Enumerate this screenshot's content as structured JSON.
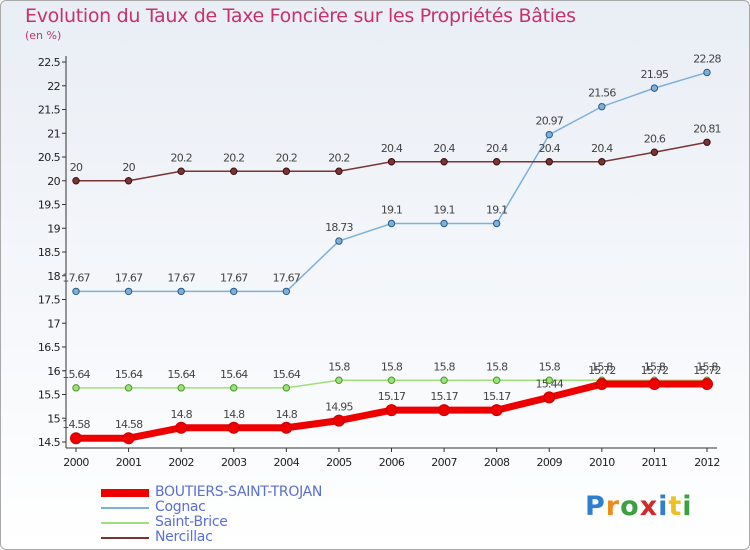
{
  "header": {
    "title": "Evolution du Taux de Taxe Foncière sur les Propriétés Bâties",
    "unit": "(en %)"
  },
  "logo": {
    "text": "Proxiti"
  },
  "chart_data": {
    "type": "line",
    "title": "Evolution du Taux de Taxe Foncière sur les Propriétés Bâties",
    "ylabel": "(en %)",
    "xlabel": "",
    "x": [
      "2000",
      "2001",
      "2002",
      "2003",
      "2004",
      "2005",
      "2006",
      "2007",
      "2008",
      "2009",
      "2010",
      "2011",
      "2012"
    ],
    "ylim": [
      14.5,
      22.5
    ],
    "ytick_step": 0.5,
    "grid": false,
    "legend_position": "bottom-left",
    "series": [
      {
        "name": "BOUTIERS-SAINT-TROJAN",
        "color": "#ee0000",
        "values": [
          14.58,
          14.58,
          14.8,
          14.8,
          14.8,
          14.95,
          15.17,
          15.17,
          15.17,
          15.44,
          15.72,
          15.72,
          15.72
        ]
      },
      {
        "name": "Cognac",
        "color": "#7fb0d9",
        "values": [
          17.67,
          17.67,
          17.67,
          17.67,
          17.67,
          18.73,
          19.1,
          19.1,
          19.1,
          20.97,
          21.56,
          21.95,
          22.28
        ]
      },
      {
        "name": "Saint-Brice",
        "color": "#9fe07a",
        "values": [
          15.64,
          15.64,
          15.64,
          15.64,
          15.64,
          15.8,
          15.8,
          15.8,
          15.8,
          15.8,
          15.8,
          15.8,
          15.8
        ]
      },
      {
        "name": "Nercillac",
        "color": "#7a3434",
        "values": [
          20,
          20,
          20.2,
          20.2,
          20.2,
          20.2,
          20.4,
          20.4,
          20.4,
          20.4,
          20.4,
          20.6,
          20.81
        ]
      }
    ]
  }
}
